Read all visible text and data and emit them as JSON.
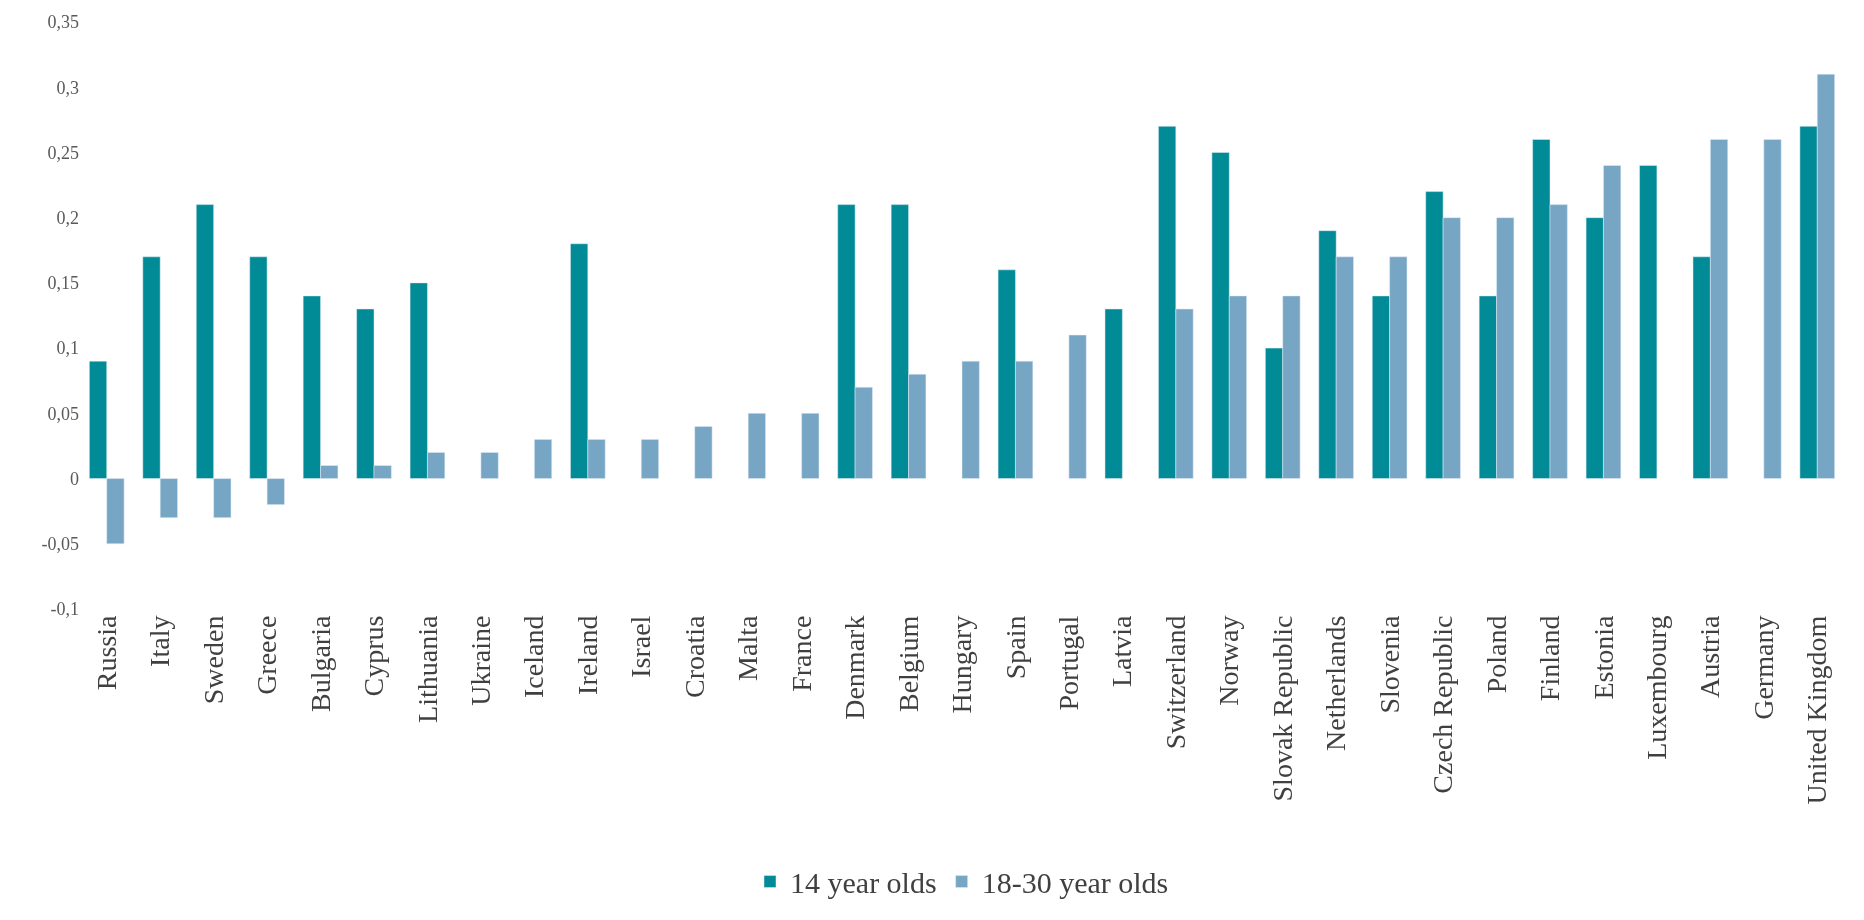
{
  "chart_data": {
    "type": "bar",
    "categories": [
      "Russia",
      "Italy",
      "Sweden",
      "Greece",
      "Bulgaria",
      "Cyprus",
      "Lithuania",
      "Ukraine",
      "Iceland",
      "Ireland",
      "Israel",
      "Croatia",
      "Malta",
      "France",
      "Denmark",
      "Belgium",
      "Hungary",
      "Spain",
      "Portugal",
      "Latvia",
      "Switzerland",
      "Norway",
      "Slovak Republic",
      "Netherlands",
      "Slovenia",
      "Czech Republic",
      "Poland",
      "Finland",
      "Estonia",
      "Luxembourg",
      "Austria",
      "Germany",
      "United Kingdom"
    ],
    "series": [
      {
        "name": "14 year olds",
        "color": "#008b96",
        "values": [
          0.09,
          0.17,
          0.21,
          0.17,
          0.14,
          0.13,
          0.15,
          null,
          null,
          0.18,
          null,
          null,
          null,
          null,
          0.21,
          0.21,
          null,
          0.16,
          null,
          0.13,
          0.27,
          0.25,
          0.1,
          0.19,
          0.14,
          0.22,
          0.14,
          0.26,
          0.2,
          0.24,
          0.17,
          null,
          0.27
        ]
      },
      {
        "name": "18-30 year olds",
        "color": "#77a6c5",
        "values": [
          -0.05,
          -0.03,
          -0.03,
          -0.02,
          0.01,
          0.01,
          0.02,
          0.02,
          0.03,
          0.03,
          0.03,
          0.04,
          0.05,
          0.05,
          0.07,
          0.08,
          0.09,
          0.09,
          0.11,
          null,
          0.13,
          0.14,
          0.14,
          0.17,
          0.17,
          0.2,
          0.2,
          0.21,
          0.24,
          null,
          0.26,
          0.26,
          0.31
        ]
      }
    ],
    "ylim": [
      -0.1,
      0.35
    ],
    "yticks": [
      {
        "value": -0.1,
        "label": "-0,1"
      },
      {
        "value": -0.05,
        "label": "-0,05"
      },
      {
        "value": 0,
        "label": "0"
      },
      {
        "value": 0.05,
        "label": "0,05"
      },
      {
        "value": 0.1,
        "label": "0,1"
      },
      {
        "value": 0.15,
        "label": "0,15"
      },
      {
        "value": 0.2,
        "label": "0,2"
      },
      {
        "value": 0.25,
        "label": "0,25"
      },
      {
        "value": 0.3,
        "label": "0,3"
      },
      {
        "value": 0.35,
        "label": "0,35"
      }
    ],
    "legend": "bottom"
  }
}
